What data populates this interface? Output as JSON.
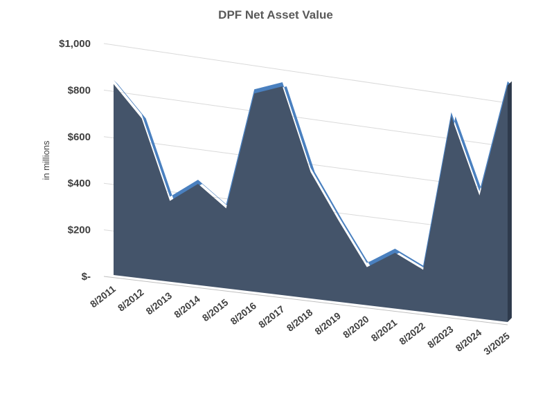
{
  "chart_data": {
    "type": "area",
    "title": "DPF Net Asset Value",
    "ylabel": "in millions",
    "xlabel": "",
    "ylim": [
      0,
      1000
    ],
    "y_ticks": [
      {
        "value": 0,
        "label": "$-"
      },
      {
        "value": 200,
        "label": "$200"
      },
      {
        "value": 400,
        "label": "$400"
      },
      {
        "value": 600,
        "label": "$600"
      },
      {
        "value": 800,
        "label": "$800"
      },
      {
        "value": 1000,
        "label": "$1,000"
      }
    ],
    "categories": [
      "8/2011",
      "8/2012",
      "8/2013",
      "8/2014",
      "8/2015",
      "8/2016",
      "8/2017",
      "8/2018",
      "8/2019",
      "8/2020",
      "8/2021",
      "8/2022",
      "8/2023",
      "8/2024",
      "3/2025"
    ],
    "values": [
      820,
      690,
      350,
      440,
      350,
      870,
      920,
      560,
      360,
      170,
      250,
      190,
      900,
      560,
      1080
    ],
    "grid": true,
    "colors": {
      "area": "#44546a",
      "top_edge": "#4a80bf",
      "side": "#2e3a4c",
      "grid": "#d9d9d9",
      "axis": "#bfbfbf"
    }
  }
}
